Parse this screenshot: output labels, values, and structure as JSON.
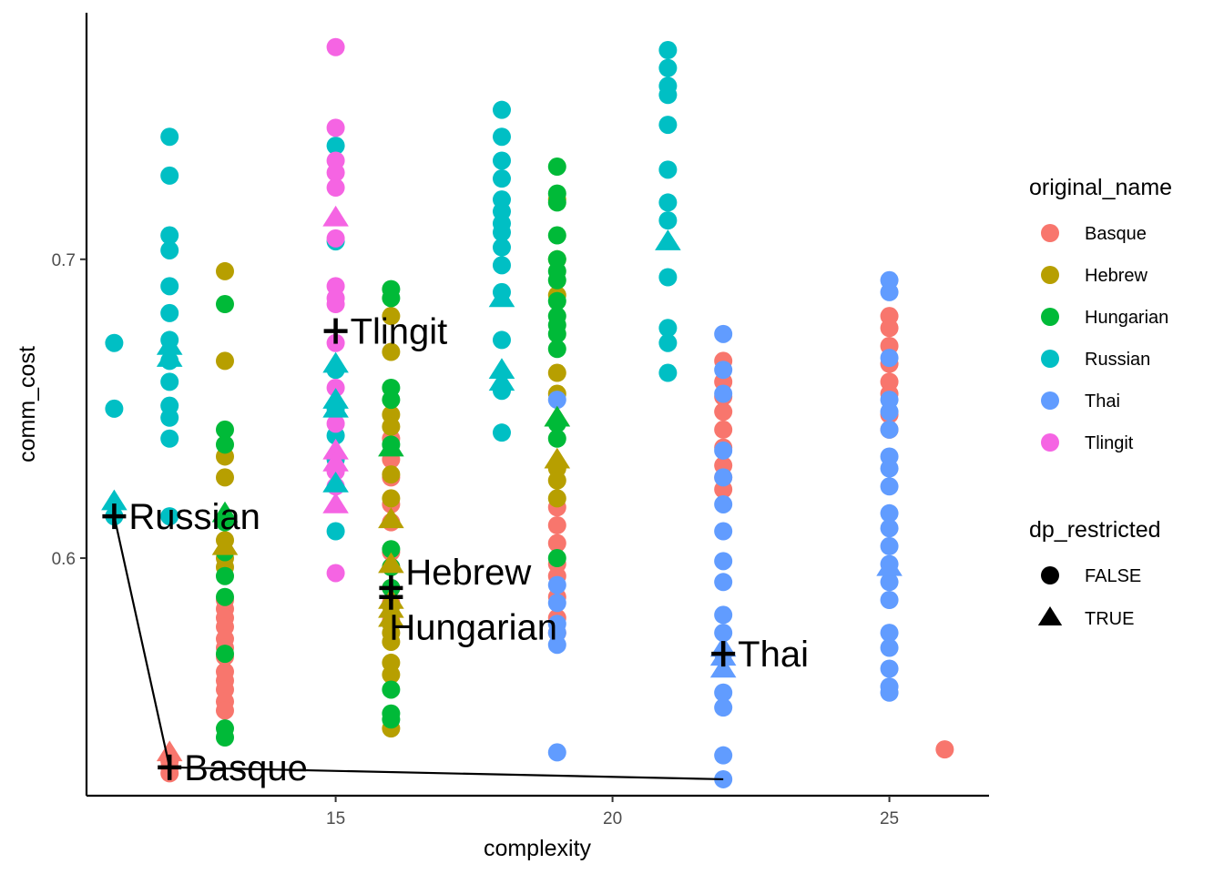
{
  "chart_data": {
    "type": "scatter",
    "title": "",
    "xlabel": "complexity",
    "ylabel": "comm_cost",
    "xlim": [
      10.5,
      26.8
    ],
    "ylim": [
      0.5205,
      0.7825
    ],
    "x_ticks": [
      15,
      20,
      25
    ],
    "y_ticks": [
      0.6,
      0.7
    ],
    "grid": false,
    "legend_position": "right",
    "colors": {
      "Basque": "#f8766d",
      "Hebrew": "#b79f00",
      "Hungarian": "#00ba38",
      "Russian": "#00bfc4",
      "Thai": "#619cff",
      "Tlingit": "#f564e3"
    },
    "legends": [
      {
        "title": "original_name",
        "entries": [
          "Basque",
          "Hebrew",
          "Hungarian",
          "Russian",
          "Thai",
          "Tlingit"
        ]
      },
      {
        "title": "dp_restricted",
        "entries": [
          "FALSE",
          "TRUE"
        ]
      }
    ],
    "series": [
      {
        "name": "Basque",
        "points": [
          [
            12,
            0.532
          ],
          [
            12,
            0.528
          ],
          [
            12,
            0.53
          ],
          [
            13,
            0.586
          ],
          [
            13,
            0.583
          ],
          [
            13,
            0.58
          ],
          [
            13,
            0.577
          ],
          [
            13,
            0.573
          ],
          [
            13,
            0.57
          ],
          [
            13,
            0.567
          ],
          [
            13,
            0.562
          ],
          [
            13,
            0.559
          ],
          [
            13,
            0.556
          ],
          [
            13,
            0.552
          ],
          [
            13,
            0.549
          ],
          [
            16,
            0.64
          ],
          [
            16,
            0.633
          ],
          [
            16,
            0.627
          ],
          [
            16,
            0.618
          ],
          [
            16,
            0.612
          ],
          [
            16,
            0.602
          ],
          [
            16,
            0.597
          ],
          [
            16,
            0.59
          ],
          [
            16,
            0.585
          ],
          [
            16,
            0.579
          ],
          [
            19,
            0.617
          ],
          [
            19,
            0.611
          ],
          [
            19,
            0.605
          ],
          [
            19,
            0.598
          ],
          [
            19,
            0.594
          ],
          [
            19,
            0.587
          ],
          [
            19,
            0.58
          ],
          [
            19,
            0.575
          ],
          [
            22,
            0.666
          ],
          [
            22,
            0.659
          ],
          [
            22,
            0.654
          ],
          [
            22,
            0.649
          ],
          [
            22,
            0.643
          ],
          [
            22,
            0.637
          ],
          [
            22,
            0.631
          ],
          [
            22,
            0.627
          ],
          [
            22,
            0.623
          ],
          [
            25,
            0.681
          ],
          [
            25,
            0.677
          ],
          [
            25,
            0.671
          ],
          [
            25,
            0.665
          ],
          [
            25,
            0.659
          ],
          [
            25,
            0.655
          ],
          [
            25,
            0.648
          ],
          [
            25,
            0.643
          ],
          [
            26,
            0.536
          ]
        ]
      },
      {
        "name": "Hebrew",
        "points": [
          [
            13,
            0.696
          ],
          [
            13,
            0.666
          ],
          [
            13,
            0.634
          ],
          [
            13,
            0.627
          ],
          [
            13,
            0.606
          ],
          [
            13,
            0.6
          ],
          [
            13,
            0.597
          ],
          [
            16,
            0.681
          ],
          [
            16,
            0.669
          ],
          [
            16,
            0.648
          ],
          [
            16,
            0.644
          ],
          [
            16,
            0.628
          ],
          [
            16,
            0.62
          ],
          [
            16,
            0.584
          ],
          [
            16,
            0.578
          ],
          [
            16,
            0.575
          ],
          [
            16,
            0.572
          ],
          [
            16,
            0.565
          ],
          [
            16,
            0.561
          ],
          [
            16,
            0.543
          ],
          [
            19,
            0.72
          ],
          [
            19,
            0.7
          ],
          [
            19,
            0.688
          ],
          [
            19,
            0.662
          ],
          [
            19,
            0.655
          ],
          [
            19,
            0.63
          ],
          [
            19,
            0.626
          ],
          [
            19,
            0.62
          ]
        ]
      },
      {
        "name": "Hungarian",
        "points": [
          [
            13,
            0.685
          ],
          [
            13,
            0.643
          ],
          [
            13,
            0.638
          ],
          [
            13,
            0.612
          ],
          [
            13,
            0.602
          ],
          [
            13,
            0.594
          ],
          [
            13,
            0.587
          ],
          [
            13,
            0.568
          ],
          [
            13,
            0.543
          ],
          [
            13,
            0.54
          ],
          [
            16,
            0.69
          ],
          [
            16,
            0.687
          ],
          [
            16,
            0.657
          ],
          [
            16,
            0.653
          ],
          [
            16,
            0.638
          ],
          [
            16,
            0.603
          ],
          [
            16,
            0.597
          ],
          [
            16,
            0.59
          ],
          [
            16,
            0.556
          ],
          [
            16,
            0.548
          ],
          [
            16,
            0.546
          ],
          [
            19,
            0.731
          ],
          [
            19,
            0.722
          ],
          [
            19,
            0.719
          ],
          [
            19,
            0.708
          ],
          [
            19,
            0.7
          ],
          [
            19,
            0.696
          ],
          [
            19,
            0.693
          ],
          [
            19,
            0.686
          ],
          [
            19,
            0.681
          ],
          [
            19,
            0.678
          ],
          [
            19,
            0.675
          ],
          [
            19,
            0.67
          ],
          [
            19,
            0.645
          ],
          [
            19,
            0.64
          ],
          [
            19,
            0.6
          ]
        ]
      },
      {
        "name": "Russian",
        "points": [
          [
            11,
            0.672
          ],
          [
            11,
            0.65
          ],
          [
            11,
            0.614
          ],
          [
            12,
            0.741
          ],
          [
            12,
            0.728
          ],
          [
            12,
            0.708
          ],
          [
            12,
            0.703
          ],
          [
            12,
            0.691
          ],
          [
            12,
            0.682
          ],
          [
            12,
            0.673
          ],
          [
            12,
            0.666
          ],
          [
            12,
            0.659
          ],
          [
            12,
            0.651
          ],
          [
            12,
            0.647
          ],
          [
            12,
            0.64
          ],
          [
            12,
            0.614
          ],
          [
            15,
            0.738
          ],
          [
            15,
            0.706
          ],
          [
            15,
            0.663
          ],
          [
            15,
            0.65
          ],
          [
            15,
            0.641
          ],
          [
            15,
            0.633
          ],
          [
            15,
            0.609
          ],
          [
            18,
            0.75
          ],
          [
            18,
            0.741
          ],
          [
            18,
            0.733
          ],
          [
            18,
            0.727
          ],
          [
            18,
            0.72
          ],
          [
            18,
            0.716
          ],
          [
            18,
            0.712
          ],
          [
            18,
            0.709
          ],
          [
            18,
            0.704
          ],
          [
            18,
            0.698
          ],
          [
            18,
            0.689
          ],
          [
            18,
            0.673
          ],
          [
            18,
            0.656
          ],
          [
            18,
            0.642
          ],
          [
            21,
            0.77
          ],
          [
            21,
            0.764
          ],
          [
            21,
            0.758
          ],
          [
            21,
            0.755
          ],
          [
            21,
            0.745
          ],
          [
            21,
            0.73
          ],
          [
            21,
            0.719
          ],
          [
            21,
            0.713
          ],
          [
            21,
            0.694
          ],
          [
            21,
            0.677
          ],
          [
            21,
            0.672
          ],
          [
            21,
            0.662
          ]
        ]
      },
      {
        "name": "Thai",
        "points": [
          [
            19,
            0.653
          ],
          [
            19,
            0.591
          ],
          [
            19,
            0.585
          ],
          [
            19,
            0.578
          ],
          [
            19,
            0.575
          ],
          [
            19,
            0.571
          ],
          [
            19,
            0.535
          ],
          [
            22,
            0.675
          ],
          [
            22,
            0.663
          ],
          [
            22,
            0.655
          ],
          [
            22,
            0.636
          ],
          [
            22,
            0.627
          ],
          [
            22,
            0.618
          ],
          [
            22,
            0.609
          ],
          [
            22,
            0.599
          ],
          [
            22,
            0.592
          ],
          [
            22,
            0.581
          ],
          [
            22,
            0.575
          ],
          [
            22,
            0.568
          ],
          [
            22,
            0.555
          ],
          [
            22,
            0.55
          ],
          [
            22,
            0.534
          ],
          [
            22,
            0.526
          ],
          [
            25,
            0.693
          ],
          [
            25,
            0.689
          ],
          [
            25,
            0.667
          ],
          [
            25,
            0.653
          ],
          [
            25,
            0.649
          ],
          [
            25,
            0.643
          ],
          [
            25,
            0.634
          ],
          [
            25,
            0.63
          ],
          [
            25,
            0.624
          ],
          [
            25,
            0.615
          ],
          [
            25,
            0.61
          ],
          [
            25,
            0.604
          ],
          [
            25,
            0.598
          ],
          [
            25,
            0.592
          ],
          [
            25,
            0.586
          ],
          [
            25,
            0.575
          ],
          [
            25,
            0.57
          ],
          [
            25,
            0.563
          ],
          [
            25,
            0.557
          ],
          [
            25,
            0.555
          ]
        ]
      },
      {
        "name": "Tlingit",
        "points": [
          [
            15,
            0.771
          ],
          [
            15,
            0.744
          ],
          [
            15,
            0.733
          ],
          [
            15,
            0.729
          ],
          [
            15,
            0.724
          ],
          [
            15,
            0.707
          ],
          [
            15,
            0.691
          ],
          [
            15,
            0.687
          ],
          [
            15,
            0.685
          ],
          [
            15,
            0.672
          ],
          [
            15,
            0.657
          ],
          [
            15,
            0.645
          ],
          [
            15,
            0.629
          ],
          [
            15,
            0.624
          ],
          [
            15,
            0.595
          ]
        ]
      }
    ],
    "dp_restricted_true": [
      {
        "name": "Russian",
        "points": [
          [
            11,
            0.619
          ],
          [
            12,
            0.671
          ],
          [
            12,
            0.667
          ],
          [
            15,
            0.665
          ],
          [
            15,
            0.653
          ],
          [
            15,
            0.65
          ],
          [
            15,
            0.625
          ],
          [
            18,
            0.687
          ],
          [
            18,
            0.663
          ],
          [
            18,
            0.659
          ],
          [
            21,
            0.706
          ]
        ]
      },
      {
        "name": "Basque",
        "points": [
          [
            12,
            0.535
          ]
        ]
      },
      {
        "name": "Hebrew",
        "points": [
          [
            13,
            0.604
          ],
          [
            16,
            0.613
          ],
          [
            16,
            0.598
          ],
          [
            16,
            0.586
          ],
          [
            16,
            0.583
          ],
          [
            16,
            0.58
          ],
          [
            19,
            0.647
          ],
          [
            19,
            0.633
          ]
        ]
      },
      {
        "name": "Hungarian",
        "points": [
          [
            13,
            0.615
          ],
          [
            16,
            0.637
          ],
          [
            19,
            0.647
          ]
        ]
      },
      {
        "name": "Tlingit",
        "points": [
          [
            15,
            0.714
          ],
          [
            15,
            0.636
          ],
          [
            15,
            0.632
          ],
          [
            15,
            0.618
          ]
        ]
      },
      {
        "name": "Thai",
        "points": [
          [
            22,
            0.57
          ],
          [
            22,
            0.567
          ],
          [
            22,
            0.563
          ],
          [
            25,
            0.597
          ]
        ]
      }
    ],
    "pareto_line": [
      [
        11,
        0.614
      ],
      [
        12,
        0.53
      ],
      [
        22,
        0.526
      ]
    ],
    "pareto_points": [
      {
        "label": "Russian",
        "x": 11,
        "y": 0.614
      },
      {
        "label": "Basque",
        "x": 12,
        "y": 0.53
      },
      {
        "label": "Tlingit",
        "x": 15,
        "y": 0.676
      },
      {
        "label": "Hebrew",
        "x": 16,
        "y": 0.59
      },
      {
        "label": "Hungarian",
        "x": 16,
        "y": 0.587
      },
      {
        "label": "Thai",
        "x": 22,
        "y": 0.568
      }
    ]
  }
}
